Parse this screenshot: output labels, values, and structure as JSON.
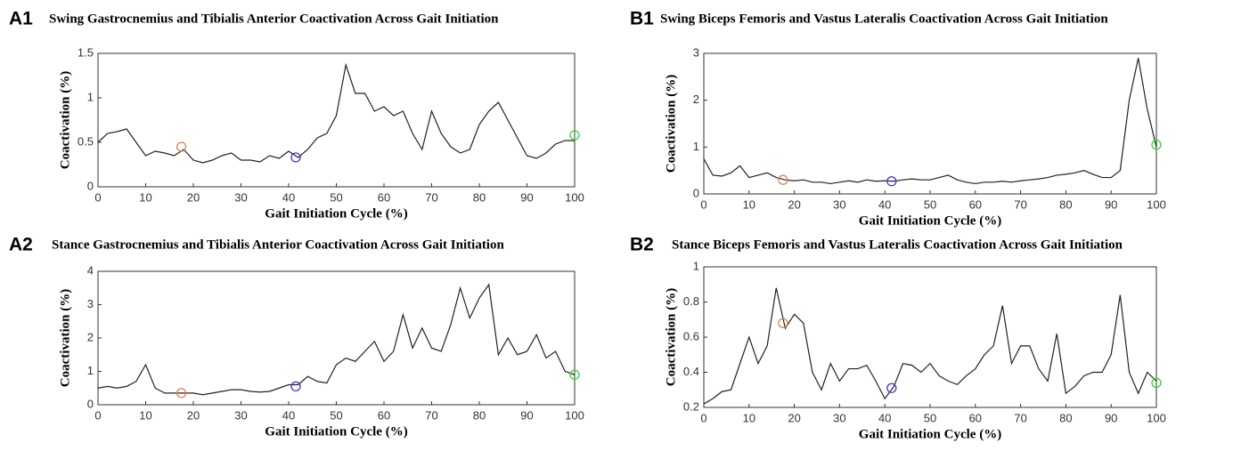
{
  "chart_data": [
    {
      "type": "line",
      "label": "A1",
      "title": "Swing Gastrocnemius and Tibialis  Anterior Coactivation Across Gait Initiation",
      "xlabel": "Gait Initiation Cycle (%)",
      "ylabel": "Coactivation (%)",
      "x": [
        0,
        2,
        4,
        6,
        8,
        10,
        12,
        14,
        16,
        18,
        20,
        22,
        24,
        26,
        28,
        30,
        32,
        34,
        36,
        38,
        40,
        42,
        44,
        46,
        48,
        50,
        52,
        54,
        56,
        58,
        60,
        62,
        64,
        66,
        68,
        70,
        72,
        74,
        76,
        78,
        80,
        82,
        84,
        86,
        88,
        90,
        92,
        94,
        96,
        98,
        100
      ],
      "values": [
        0.5,
        0.6,
        0.62,
        0.65,
        0.5,
        0.35,
        0.4,
        0.38,
        0.35,
        0.42,
        0.3,
        0.27,
        0.3,
        0.35,
        0.38,
        0.3,
        0.3,
        0.28,
        0.35,
        0.32,
        0.4,
        0.33,
        0.42,
        0.55,
        0.6,
        0.8,
        1.37,
        1.05,
        1.05,
        0.85,
        0.9,
        0.8,
        0.85,
        0.6,
        0.42,
        0.85,
        0.6,
        0.45,
        0.38,
        0.42,
        0.7,
        0.85,
        0.95,
        0.75,
        0.55,
        0.35,
        0.32,
        0.38,
        0.48,
        0.52,
        0.52
      ],
      "color": "#222222",
      "markers": [
        {
          "x": 17.5,
          "y": 0.45,
          "color": "#d9825b"
        },
        {
          "x": 41.5,
          "y": 0.33,
          "color": "#3a3ad0"
        },
        {
          "x": 100,
          "y": 0.58,
          "color": "#33d633"
        }
      ],
      "xlim": [
        0,
        100
      ],
      "ylim": [
        0,
        1.5
      ],
      "xticks": [
        0,
        10,
        20,
        30,
        40,
        50,
        60,
        70,
        80,
        90,
        100
      ],
      "yticks": [
        0,
        0.5,
        1,
        1.5
      ]
    },
    {
      "type": "line",
      "label": "A2",
      "title": "Stance Gastrocnemius and Tibialis  Anterior Coactivation Across Gait Initiation",
      "xlabel": "Gait Initiation Cycle (%)",
      "ylabel": "Coactivation (%)",
      "x": [
        0,
        2,
        4,
        6,
        8,
        10,
        12,
        14,
        16,
        18,
        20,
        22,
        24,
        26,
        28,
        30,
        32,
        34,
        36,
        38,
        40,
        42,
        44,
        46,
        48,
        50,
        52,
        54,
        56,
        58,
        60,
        62,
        64,
        66,
        68,
        70,
        72,
        74,
        76,
        78,
        80,
        82,
        84,
        86,
        88,
        90,
        92,
        94,
        96,
        98,
        100
      ],
      "values": [
        0.5,
        0.55,
        0.5,
        0.55,
        0.7,
        1.2,
        0.5,
        0.35,
        0.35,
        0.35,
        0.35,
        0.3,
        0.35,
        0.4,
        0.45,
        0.45,
        0.4,
        0.38,
        0.4,
        0.5,
        0.6,
        0.6,
        0.85,
        0.7,
        0.65,
        1.2,
        1.4,
        1.3,
        1.6,
        1.9,
        1.3,
        1.6,
        2.7,
        1.7,
        2.3,
        1.7,
        1.6,
        2.4,
        3.5,
        2.6,
        3.2,
        3.6,
        1.5,
        2.0,
        1.5,
        1.6,
        2.1,
        1.4,
        1.6,
        1.0,
        0.9
      ],
      "color": "#222222",
      "markers": [
        {
          "x": 17.5,
          "y": 0.35,
          "color": "#d9825b"
        },
        {
          "x": 41.5,
          "y": 0.55,
          "color": "#3a3ad0"
        },
        {
          "x": 100,
          "y": 0.9,
          "color": "#33d633"
        }
      ],
      "xlim": [
        0,
        100
      ],
      "ylim": [
        0,
        4
      ],
      "xticks": [
        0,
        10,
        20,
        30,
        40,
        50,
        60,
        70,
        80,
        90,
        100
      ],
      "yticks": [
        0,
        1,
        2,
        3,
        4
      ]
    },
    {
      "type": "line",
      "label": "B1",
      "title": "Swing Biceps Femoris and Vastus Lateralis Coactivation Across Gait Initiation",
      "xlabel": "Gait Initiation Cycle (%)",
      "ylabel": "Coactivation (%)",
      "x": [
        0,
        2,
        4,
        6,
        8,
        10,
        12,
        14,
        16,
        18,
        20,
        22,
        24,
        26,
        28,
        30,
        32,
        34,
        36,
        38,
        40,
        42,
        44,
        46,
        48,
        50,
        52,
        54,
        56,
        58,
        60,
        62,
        64,
        66,
        68,
        70,
        72,
        74,
        76,
        78,
        80,
        82,
        84,
        86,
        88,
        90,
        92,
        94,
        96,
        98,
        100
      ],
      "values": [
        0.75,
        0.4,
        0.38,
        0.45,
        0.6,
        0.35,
        0.4,
        0.45,
        0.35,
        0.3,
        0.28,
        0.3,
        0.25,
        0.25,
        0.22,
        0.25,
        0.28,
        0.25,
        0.3,
        0.27,
        0.28,
        0.27,
        0.3,
        0.32,
        0.3,
        0.3,
        0.35,
        0.4,
        0.3,
        0.25,
        0.22,
        0.25,
        0.25,
        0.27,
        0.25,
        0.28,
        0.3,
        0.32,
        0.35,
        0.4,
        0.42,
        0.45,
        0.5,
        0.42,
        0.35,
        0.35,
        0.5,
        2.0,
        2.9,
        1.8,
        1.0
      ],
      "color": "#222222",
      "markers": [
        {
          "x": 17.5,
          "y": 0.3,
          "color": "#d9825b"
        },
        {
          "x": 41.5,
          "y": 0.27,
          "color": "#3a3ad0"
        },
        {
          "x": 100,
          "y": 1.05,
          "color": "#33d633"
        }
      ],
      "xlim": [
        0,
        100
      ],
      "ylim": [
        0,
        3
      ],
      "xticks": [
        0,
        10,
        20,
        30,
        40,
        50,
        60,
        70,
        80,
        90,
        100
      ],
      "yticks": [
        0,
        1,
        2,
        3
      ]
    },
    {
      "type": "line",
      "label": "B2",
      "title": "Stance Biceps Femoris and Vastus Lateralis Coactivation Across Gait Initiation",
      "xlabel": "Gait Initiation Cycle (%)",
      "ylabel": "Coactivation (%)",
      "x": [
        0,
        2,
        4,
        6,
        8,
        10,
        12,
        14,
        16,
        18,
        20,
        22,
        24,
        26,
        28,
        30,
        32,
        34,
        36,
        38,
        40,
        42,
        44,
        46,
        48,
        50,
        52,
        54,
        56,
        58,
        60,
        62,
        64,
        66,
        68,
        70,
        72,
        74,
        76,
        78,
        80,
        82,
        84,
        86,
        88,
        90,
        92,
        94,
        96,
        98,
        100
      ],
      "values": [
        0.22,
        0.25,
        0.29,
        0.3,
        0.45,
        0.6,
        0.45,
        0.55,
        0.88,
        0.65,
        0.73,
        0.68,
        0.4,
        0.3,
        0.45,
        0.35,
        0.42,
        0.42,
        0.44,
        0.35,
        0.25,
        0.32,
        0.45,
        0.44,
        0.4,
        0.45,
        0.38,
        0.35,
        0.33,
        0.38,
        0.42,
        0.5,
        0.55,
        0.78,
        0.45,
        0.55,
        0.55,
        0.42,
        0.35,
        0.62,
        0.28,
        0.32,
        0.38,
        0.4,
        0.4,
        0.5,
        0.84,
        0.4,
        0.28,
        0.4,
        0.35
      ],
      "color": "#222222",
      "markers": [
        {
          "x": 17.5,
          "y": 0.68,
          "color": "#d9825b"
        },
        {
          "x": 41.5,
          "y": 0.31,
          "color": "#3a3ad0"
        },
        {
          "x": 100,
          "y": 0.34,
          "color": "#33d633"
        }
      ],
      "xlim": [
        0,
        100
      ],
      "ylim": [
        0.2,
        1
      ],
      "xticks": [
        0,
        10,
        20,
        30,
        40,
        50,
        60,
        70,
        80,
        90,
        100
      ],
      "yticks": [
        0.2,
        0.4,
        0.6,
        0.8,
        1
      ]
    }
  ]
}
